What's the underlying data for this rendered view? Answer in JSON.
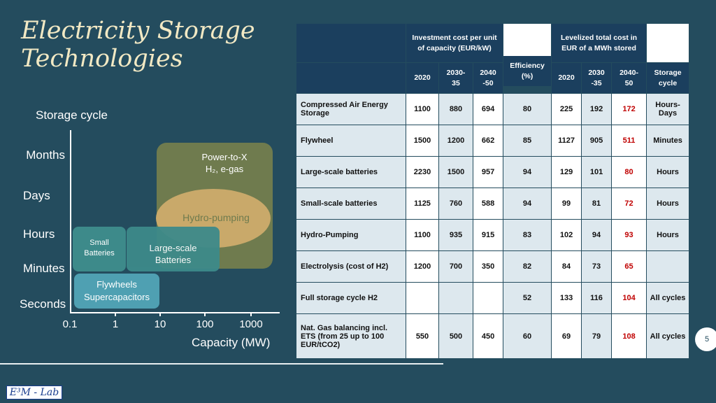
{
  "title": [
    "Electricity Storage",
    "Technologies"
  ],
  "diagram": {
    "y_axis_label": "Storage cycle",
    "x_axis_label": "Capacity (MW)",
    "y_levels": [
      "Months",
      "Days",
      "Hours",
      "Minutes",
      "Seconds"
    ],
    "x_ticks": [
      "0.1",
      "1",
      "10",
      "100",
      "1000"
    ],
    "regions": {
      "power_to_x": "Power-to-X\nH₂, e-gas",
      "hydro": "Hydro-pumping",
      "small_batteries": "Small\nBatteries",
      "large_batteries": "Large-scale\nBatteries",
      "flywheels": "Flywheels\nSupercapacitors"
    },
    "colors": {
      "power_to_x": "#6f7b4e",
      "hydro": "#c9a96a",
      "small_batteries": "#3d8a8a",
      "large_batteries": "#3d8a8a",
      "flywheels": "#4fa0b2"
    }
  },
  "table": {
    "group_investment": "Investment cost per unit of capacity (EUR/kW)",
    "group_levelized": "Levelized total cost in EUR of a MWh stored",
    "sub_headers": [
      "2020",
      "2030-\n35",
      "2040\n-50",
      "Efficiency\n(%)",
      "2020",
      "2030\n-35",
      "2040-\n50",
      "Storage\ncycle"
    ],
    "rows": [
      {
        "name": "Compressed Air Energy Storage",
        "v": [
          "1100",
          "880",
          "694",
          "80",
          "225",
          "192",
          "172",
          "Hours-\nDays"
        ]
      },
      {
        "name": "Flywheel",
        "v": [
          "1500",
          "1200",
          "662",
          "85",
          "1127",
          "905",
          "511",
          "Minutes"
        ]
      },
      {
        "name": "Large-scale batteries",
        "v": [
          "2230",
          "1500",
          "957",
          "94",
          "129",
          "101",
          "80",
          "Hours"
        ]
      },
      {
        "name": "Small-scale batteries",
        "v": [
          "1125",
          "760",
          "588",
          "94",
          "99",
          "81",
          "72",
          "Hours"
        ]
      },
      {
        "name": "Hydro-Pumping",
        "v": [
          "1100",
          "935",
          "915",
          "83",
          "102",
          "94",
          "93",
          "Hours"
        ]
      },
      {
        "name": "Electrolysis (cost of H2)",
        "v": [
          "1200",
          "700",
          "350",
          "82",
          "84",
          "73",
          "65",
          ""
        ]
      },
      {
        "name": "Full storage cycle H2",
        "v": [
          "",
          "",
          "",
          "52",
          "133",
          "116",
          "104",
          "All cycles"
        ]
      },
      {
        "name": "Nat. Gas balancing incl. ETS (from 25 up to 100 EUR/tCO2)",
        "v": [
          "550",
          "500",
          "450",
          "60",
          "69",
          "79",
          "108",
          "All cycles"
        ]
      }
    ]
  },
  "logo_text": "E³M - Lab",
  "page_number": "5"
}
